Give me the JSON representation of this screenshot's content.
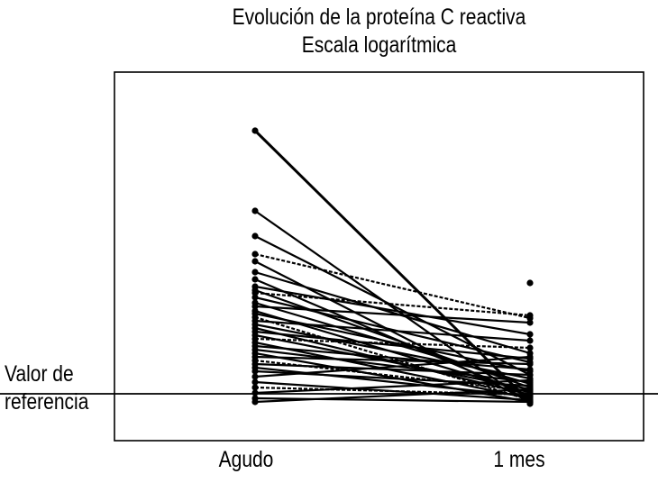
{
  "chart_data": {
    "type": "line",
    "title": "Evolución de la proteína C reactiva",
    "subtitle": "Escala logarítmica",
    "yscale": "log",
    "grid": false,
    "legend": "none",
    "categories": [
      "Agudo",
      "1 mes"
    ],
    "reference_line": {
      "label_line1": "Valor de",
      "label_line2": "referencia"
    },
    "series": [
      {
        "values": [
          145,
          446
        ]
      },
      {
        "values": [
          234,
          448
        ]
      },
      {
        "values": [
          262,
          416
        ]
      },
      {
        "values": [
          282,
          353
        ]
      },
      {
        "values": [
          290,
          446
        ]
      },
      {
        "values": [
          302,
          392
        ]
      },
      {
        "values": [
          310,
          440
        ]
      },
      {
        "values": [
          318,
          371
        ]
      },
      {
        "values": [
          322,
          430
        ]
      },
      {
        "values": [
          325,
          350
        ]
      },
      {
        "values": [
          330,
          402
        ]
      },
      {
        "values": [
          336,
          426
        ]
      },
      {
        "values": [
          340,
          358
        ]
      },
      {
        "values": [
          345,
          436
        ]
      },
      {
        "values": [
          348,
          412
        ]
      },
      {
        "values": [
          352,
          444
        ]
      },
      {
        "values": [
          356,
          378
        ]
      },
      {
        "values": [
          360,
          420
        ]
      },
      {
        "values": [
          364,
          438
        ]
      },
      {
        "values": [
          368,
          398
        ]
      },
      {
        "values": [
          372,
          432
        ]
      },
      {
        "values": [
          376,
          386
        ]
      },
      {
        "values": [
          380,
          442
        ]
      },
      {
        "values": [
          384,
          410
        ]
      },
      {
        "values": [
          388,
          424
        ]
      },
      {
        "values": [
          392,
          446
        ]
      },
      {
        "values": [
          396,
          404
        ]
      },
      {
        "values": [
          400,
          434
        ]
      },
      {
        "values": [
          404,
          416
        ]
      },
      {
        "values": [
          408,
          440
        ]
      },
      {
        "values": [
          412,
          428
        ]
      },
      {
        "values": [
          418,
          396
        ]
      },
      {
        "values": [
          424,
          444
        ]
      },
      {
        "values": [
          430,
          438
        ]
      },
      {
        "values": [
          436,
          422
        ]
      },
      {
        "values": [
          442,
          446
        ]
      },
      {
        "values": [
          446,
          432
        ]
      }
    ]
  }
}
